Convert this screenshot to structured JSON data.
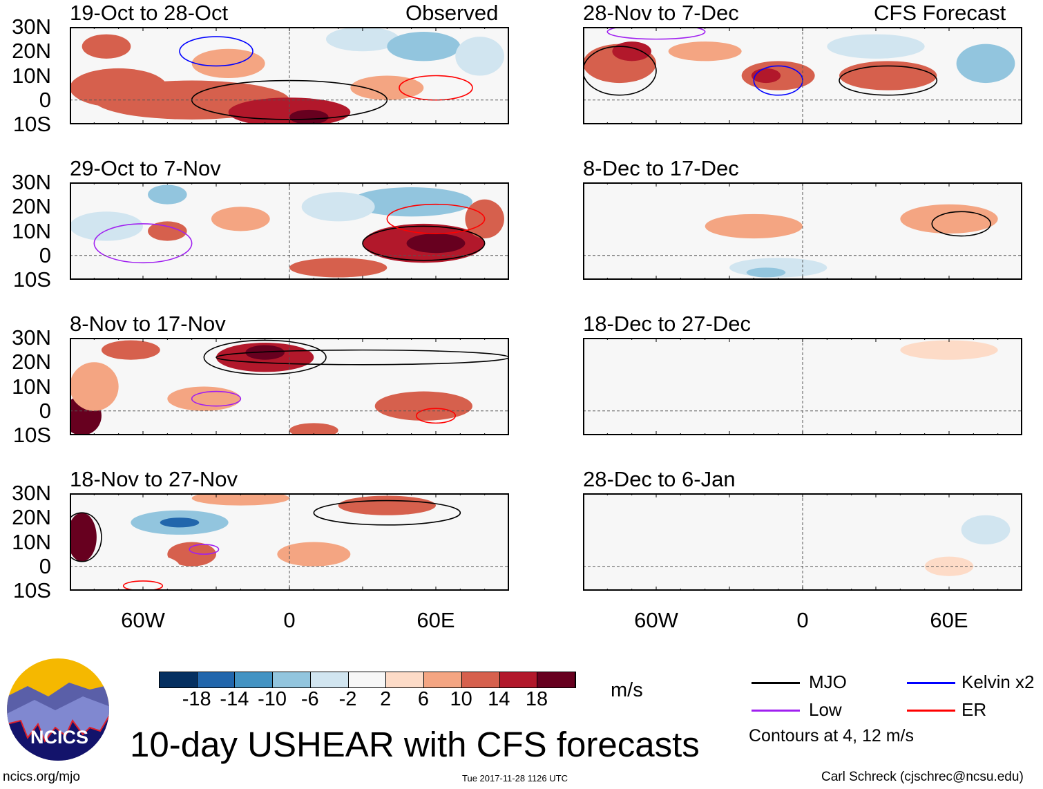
{
  "columns": {
    "left": "Observed",
    "right": "CFS Forecast"
  },
  "lat_labels": [
    "30N",
    "20N",
    "10N",
    "0",
    "10S"
  ],
  "lon_labels": [
    "60W",
    "0",
    "60E"
  ],
  "colors": [
    "#053061",
    "#2166ac",
    "#4393c3",
    "#92c5de",
    "#d1e5f0",
    "#f7f7f7",
    "#fddbc7",
    "#f4a582",
    "#d6604d",
    "#b2182b",
    "#67001f"
  ],
  "colorbar": {
    "levels": [
      "-18",
      "-14",
      "-10",
      "-6",
      "-2",
      "2",
      "6",
      "10",
      "14",
      "18"
    ],
    "units": "m/s"
  },
  "legend": {
    "mjo": "MJO",
    "kelvin": "Kelvin x2",
    "low": "Low",
    "er": "ER",
    "mjo_color": "#000000",
    "kelvin_color": "#0000ff",
    "low_color": "#a020f0",
    "er_color": "#ff0000",
    "note": "Contours at 4, 12 m/s"
  },
  "title": "10-day USHEAR with CFS forecasts",
  "logo_text": "NCICS",
  "footer": {
    "url": "ncics.org/mjo",
    "timestamp": "Tue 2017-11-28 1126 UTC",
    "author": "Carl Schreck (cjschrec@ncsu.edu)"
  },
  "chart_data": {
    "type": "heatmap",
    "lon_range": [
      -90,
      90
    ],
    "lat_range": [
      -10,
      30
    ],
    "panels": [
      {
        "title": "19-Oct to 28-Oct",
        "blobs": [
          [
            -40,
            0,
            40,
            8,
            10
          ],
          [
            0,
            -5,
            25,
            6,
            14
          ],
          [
            8,
            -7,
            8,
            3,
            18
          ],
          [
            -70,
            5,
            20,
            8,
            10
          ],
          [
            -75,
            22,
            10,
            5,
            10
          ],
          [
            30,
            25,
            15,
            5,
            -6
          ],
          [
            55,
            22,
            15,
            6,
            -10
          ],
          [
            78,
            18,
            10,
            8,
            -6
          ],
          [
            -25,
            15,
            15,
            6,
            6
          ],
          [
            40,
            5,
            15,
            5,
            6
          ]
        ],
        "contours": [
          [
            0,
            0,
            40,
            8,
            "mjo"
          ],
          [
            60,
            5,
            15,
            5,
            "er"
          ],
          [
            -30,
            20,
            15,
            6,
            "kelvin"
          ]
        ]
      },
      {
        "title": "29-Oct to 7-Nov",
        "blobs": [
          [
            -75,
            12,
            15,
            6,
            -6
          ],
          [
            -50,
            25,
            8,
            4,
            -10
          ],
          [
            50,
            22,
            25,
            6,
            -10
          ],
          [
            20,
            20,
            15,
            6,
            -6
          ],
          [
            55,
            5,
            25,
            8,
            14
          ],
          [
            60,
            5,
            12,
            4,
            18
          ],
          [
            -50,
            10,
            8,
            4,
            10
          ],
          [
            80,
            15,
            8,
            8,
            10
          ],
          [
            -20,
            15,
            12,
            5,
            6
          ],
          [
            20,
            -5,
            20,
            4,
            10
          ]
        ],
        "contours": [
          [
            55,
            5,
            25,
            7,
            "mjo"
          ],
          [
            -60,
            5,
            20,
            8,
            "low"
          ],
          [
            60,
            15,
            20,
            6,
            "er"
          ]
        ]
      },
      {
        "title": "8-Nov to 17-Nov",
        "blobs": [
          [
            -10,
            22,
            20,
            6,
            14
          ],
          [
            -10,
            24,
            8,
            3,
            18
          ],
          [
            -65,
            25,
            12,
            4,
            10
          ],
          [
            -85,
            -2,
            8,
            8,
            18
          ],
          [
            55,
            2,
            20,
            6,
            10
          ],
          [
            10,
            -8,
            10,
            3,
            10
          ],
          [
            -35,
            5,
            15,
            5,
            6
          ],
          [
            -80,
            10,
            10,
            10,
            6
          ],
          [
            40,
            15,
            15,
            5,
            -2
          ]
        ],
        "contours": [
          [
            -10,
            22,
            25,
            7,
            "mjo"
          ],
          [
            30,
            22,
            60,
            3,
            "mjo"
          ],
          [
            60,
            -2,
            8,
            3,
            "er"
          ],
          [
            -30,
            5,
            10,
            3,
            "low"
          ]
        ]
      },
      {
        "title": "18-Nov to 27-Nov",
        "blobs": [
          [
            -45,
            18,
            20,
            5,
            -10
          ],
          [
            -45,
            18,
            8,
            2,
            -18
          ],
          [
            -40,
            5,
            10,
            5,
            10
          ],
          [
            -85,
            12,
            6,
            10,
            18
          ],
          [
            40,
            25,
            20,
            4,
            10
          ],
          [
            -20,
            28,
            20,
            3,
            6
          ],
          [
            10,
            5,
            15,
            5,
            6
          ],
          [
            -60,
            0,
            15,
            5,
            -2
          ]
        ],
        "contours": [
          [
            40,
            22,
            30,
            5,
            "mjo"
          ],
          [
            -85,
            12,
            8,
            10,
            "mjo"
          ],
          [
            -60,
            -8,
            8,
            2,
            "er"
          ],
          [
            -35,
            7,
            6,
            2,
            "low"
          ]
        ]
      },
      {
        "title": "28-Nov to 7-Dec",
        "blobs": [
          [
            -75,
            15,
            15,
            8,
            10
          ],
          [
            -70,
            20,
            8,
            4,
            14
          ],
          [
            -10,
            10,
            15,
            6,
            10
          ],
          [
            -15,
            10,
            6,
            3,
            14
          ],
          [
            35,
            10,
            20,
            6,
            10
          ],
          [
            75,
            15,
            12,
            8,
            -10
          ],
          [
            30,
            22,
            20,
            5,
            -6
          ],
          [
            -40,
            20,
            15,
            4,
            6
          ],
          [
            -30,
            -5,
            20,
            4,
            -2
          ]
        ],
        "contours": [
          [
            -75,
            12,
            15,
            10,
            "mjo"
          ],
          [
            35,
            8,
            20,
            6,
            "mjo"
          ],
          [
            -10,
            8,
            10,
            6,
            "kelvin"
          ],
          [
            -60,
            28,
            20,
            3,
            "low"
          ]
        ]
      },
      {
        "title": "8-Dec to 17-Dec",
        "blobs": [
          [
            -20,
            12,
            20,
            5,
            6
          ],
          [
            60,
            15,
            20,
            6,
            6
          ],
          [
            -10,
            -5,
            20,
            4,
            -6
          ],
          [
            -15,
            -7,
            8,
            2,
            -10
          ],
          [
            -60,
            15,
            15,
            5,
            -2
          ],
          [
            85,
            20,
            6,
            8,
            -2
          ]
        ],
        "contours": [
          [
            65,
            13,
            12,
            5,
            "mjo"
          ]
        ]
      },
      {
        "title": "18-Dec to 27-Dec",
        "blobs": [
          [
            -30,
            20,
            30,
            5,
            -2
          ],
          [
            40,
            5,
            25,
            6,
            -2
          ],
          [
            60,
            25,
            20,
            4,
            2
          ],
          [
            -70,
            -5,
            15,
            5,
            -2
          ]
        ],
        "contours": []
      },
      {
        "title": "28-Dec to 6-Jan",
        "blobs": [
          [
            -60,
            10,
            20,
            10,
            -2
          ],
          [
            30,
            22,
            30,
            5,
            -2
          ],
          [
            75,
            15,
            10,
            6,
            -6
          ],
          [
            -30,
            -5,
            25,
            5,
            -2
          ],
          [
            60,
            0,
            10,
            4,
            2
          ]
        ],
        "contours": []
      }
    ]
  }
}
